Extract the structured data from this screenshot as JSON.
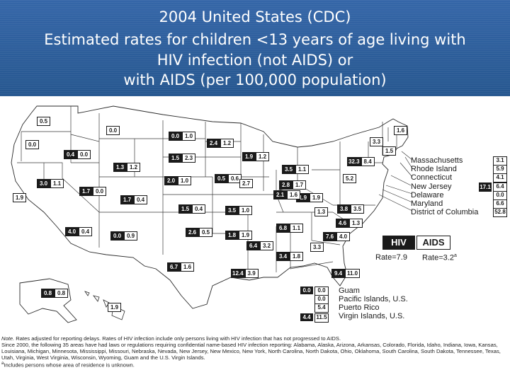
{
  "title": {
    "line1": "2004 United States (CDC)",
    "line2": "Estimated rates for children <13 years of age living with",
    "line3": "HIV infection (not AIDS) or",
    "line4": "with AIDS (per 100,000 population)"
  },
  "states": [
    {
      "id": "WA",
      "hiv": "",
      "aids": "0.5"
    },
    {
      "id": "OR",
      "hiv": "",
      "aids": "0.0"
    },
    {
      "id": "CA",
      "hiv": "",
      "aids": "1.9"
    },
    {
      "id": "NV",
      "hiv": "3.0",
      "aids": "1.1"
    },
    {
      "id": "ID",
      "hiv": "0.4",
      "aids": "0.0"
    },
    {
      "id": "MT",
      "hiv": "",
      "aids": "0.0"
    },
    {
      "id": "WY",
      "hiv": "1.3",
      "aids": "1.2"
    },
    {
      "id": "UT",
      "hiv": "1.7",
      "aids": "0.0"
    },
    {
      "id": "CO",
      "hiv": "1.7",
      "aids": "0.4"
    },
    {
      "id": "AZ",
      "hiv": "4.0",
      "aids": "0.4"
    },
    {
      "id": "NM",
      "hiv": "0.0",
      "aids": "0.9"
    },
    {
      "id": "ND",
      "hiv": "0.0",
      "aids": "1.0"
    },
    {
      "id": "SD",
      "hiv": "1.5",
      "aids": "2.3"
    },
    {
      "id": "NE",
      "hiv": "2.0",
      "aids": "1.0"
    },
    {
      "id": "KS",
      "hiv": "1.5",
      "aids": "0.4"
    },
    {
      "id": "OK",
      "hiv": "2.6",
      "aids": "0.5"
    },
    {
      "id": "TX",
      "hiv": "6.7",
      "aids": "1.6"
    },
    {
      "id": "MN",
      "hiv": "2.4",
      "aids": "1.2"
    },
    {
      "id": "IA",
      "hiv": "0.5",
      "aids": "0.6"
    },
    {
      "id": "MO",
      "hiv": "3.5",
      "aids": "1.0"
    },
    {
      "id": "AR",
      "hiv": "1.8",
      "aids": "1.9"
    },
    {
      "id": "LA",
      "hiv": "12.4",
      "aids": "3.9"
    },
    {
      "id": "WI",
      "hiv": "1.9",
      "aids": "1.2"
    },
    {
      "id": "IL",
      "hiv": "",
      "aids": "2.7"
    },
    {
      "id": "MI",
      "hiv": "3.5",
      "aids": "1.1"
    },
    {
      "id": "IN",
      "hiv": "2.8",
      "aids": "1.7"
    },
    {
      "id": "OH",
      "hiv": "1.9",
      "aids": "1.9"
    },
    {
      "id": "KY",
      "hiv": "2.1",
      "aids": "1.6"
    },
    {
      "id": "TN",
      "hiv": "6.8",
      "aids": "1.1"
    },
    {
      "id": "MS",
      "hiv": "6.4",
      "aids": "3.2"
    },
    {
      "id": "AL",
      "hiv": "3.4",
      "aids": "1.8"
    },
    {
      "id": "GA",
      "hiv": "",
      "aids": "3.3"
    },
    {
      "id": "FL",
      "hiv": "9.4",
      "aids": "11.0"
    },
    {
      "id": "SC",
      "hiv": "7.6",
      "aids": "4.0"
    },
    {
      "id": "NC",
      "hiv": "4.6",
      "aids": "1.3"
    },
    {
      "id": "VA",
      "hiv": "3.8",
      "aids": "3.5"
    },
    {
      "id": "WV",
      "hiv": "",
      "aids": "1.3"
    },
    {
      "id": "PA",
      "hiv": "",
      "aids": "5.2"
    },
    {
      "id": "NY",
      "hiv": "32.3",
      "aids": "8.4"
    },
    {
      "id": "VT",
      "hiv": "",
      "aids": "3.3"
    },
    {
      "id": "NH",
      "hiv": "",
      "aids": "1.5"
    },
    {
      "id": "ME",
      "hiv": "",
      "aids": "1.6"
    },
    {
      "id": "AK",
      "hiv": "0.8",
      "aids": "0.8"
    },
    {
      "id": "HI",
      "hiv": "",
      "aids": "1.9"
    }
  ],
  "northeast": [
    {
      "name": "Massachusetts",
      "hiv": "",
      "aids": "3.1"
    },
    {
      "name": "Rhode Island",
      "hiv": "",
      "aids": "5.9"
    },
    {
      "name": "Connecticut",
      "hiv": "",
      "aids": "4.1"
    },
    {
      "name": "New Jersey",
      "hiv": "17.1",
      "aids": "6.4"
    },
    {
      "name": "Delaware",
      "hiv": "",
      "aids": "0.0"
    },
    {
      "name": "Maryland",
      "hiv": "",
      "aids": "6.6"
    },
    {
      "name": "District of Columbia",
      "hiv": "",
      "aids": "52.8"
    }
  ],
  "territories": [
    {
      "name": "Guam",
      "hiv": "0.0",
      "aids": "0.0"
    },
    {
      "name": "Pacific Islands, U.S.",
      "hiv": "",
      "aids": "0.0"
    },
    {
      "name": "Puerto Rico",
      "hiv": "",
      "aids": "5.4"
    },
    {
      "name": "Virgin Islands, U.S.",
      "hiv": "4.4",
      "aids": "11.5"
    }
  ],
  "legend": {
    "hiv_label": "HIV",
    "aids_label": "AIDS",
    "hiv_rate": "Rate=7.9",
    "aids_rate": "Rate=3.2",
    "aids_rate_sup": "a"
  },
  "notes": {
    "line1_label": "Note.",
    "line1": "  Rates adjusted for reporting delays.  Rates of HIV infection include only persons living with HIV infection that has not progressed to AIDS.",
    "line2": "Since 2000, the following 35 areas have had laws or regulations requiring confidential name-based HIV infection reporting: Alabama, Alaska, Arizona, Arkansas, Colorado, Florida, Idaho, Indiana, Iowa, Kansas, Louisiana, Michigan, Minnesota, Mississippi, Missouri, Nebraska, Nevada, New Jersey, New Mexico, New York, North Carolina, North Dakota, Ohio, Oklahoma, South Carolina, South Dakota, Tennessee, Texas, Utah, Virginia, West Virginia, Wisconsin, Wyoming, Guam and the U.S. Virgin Islands.",
    "line3_sup": "a",
    "line3": "Includes persons whose area of residence is unknown."
  },
  "colors": {
    "header_bg": "#2c5e9e",
    "hiv_fill": "#1a1a1a",
    "aids_fill": "#ffffff",
    "border": "#1a1a1a"
  }
}
